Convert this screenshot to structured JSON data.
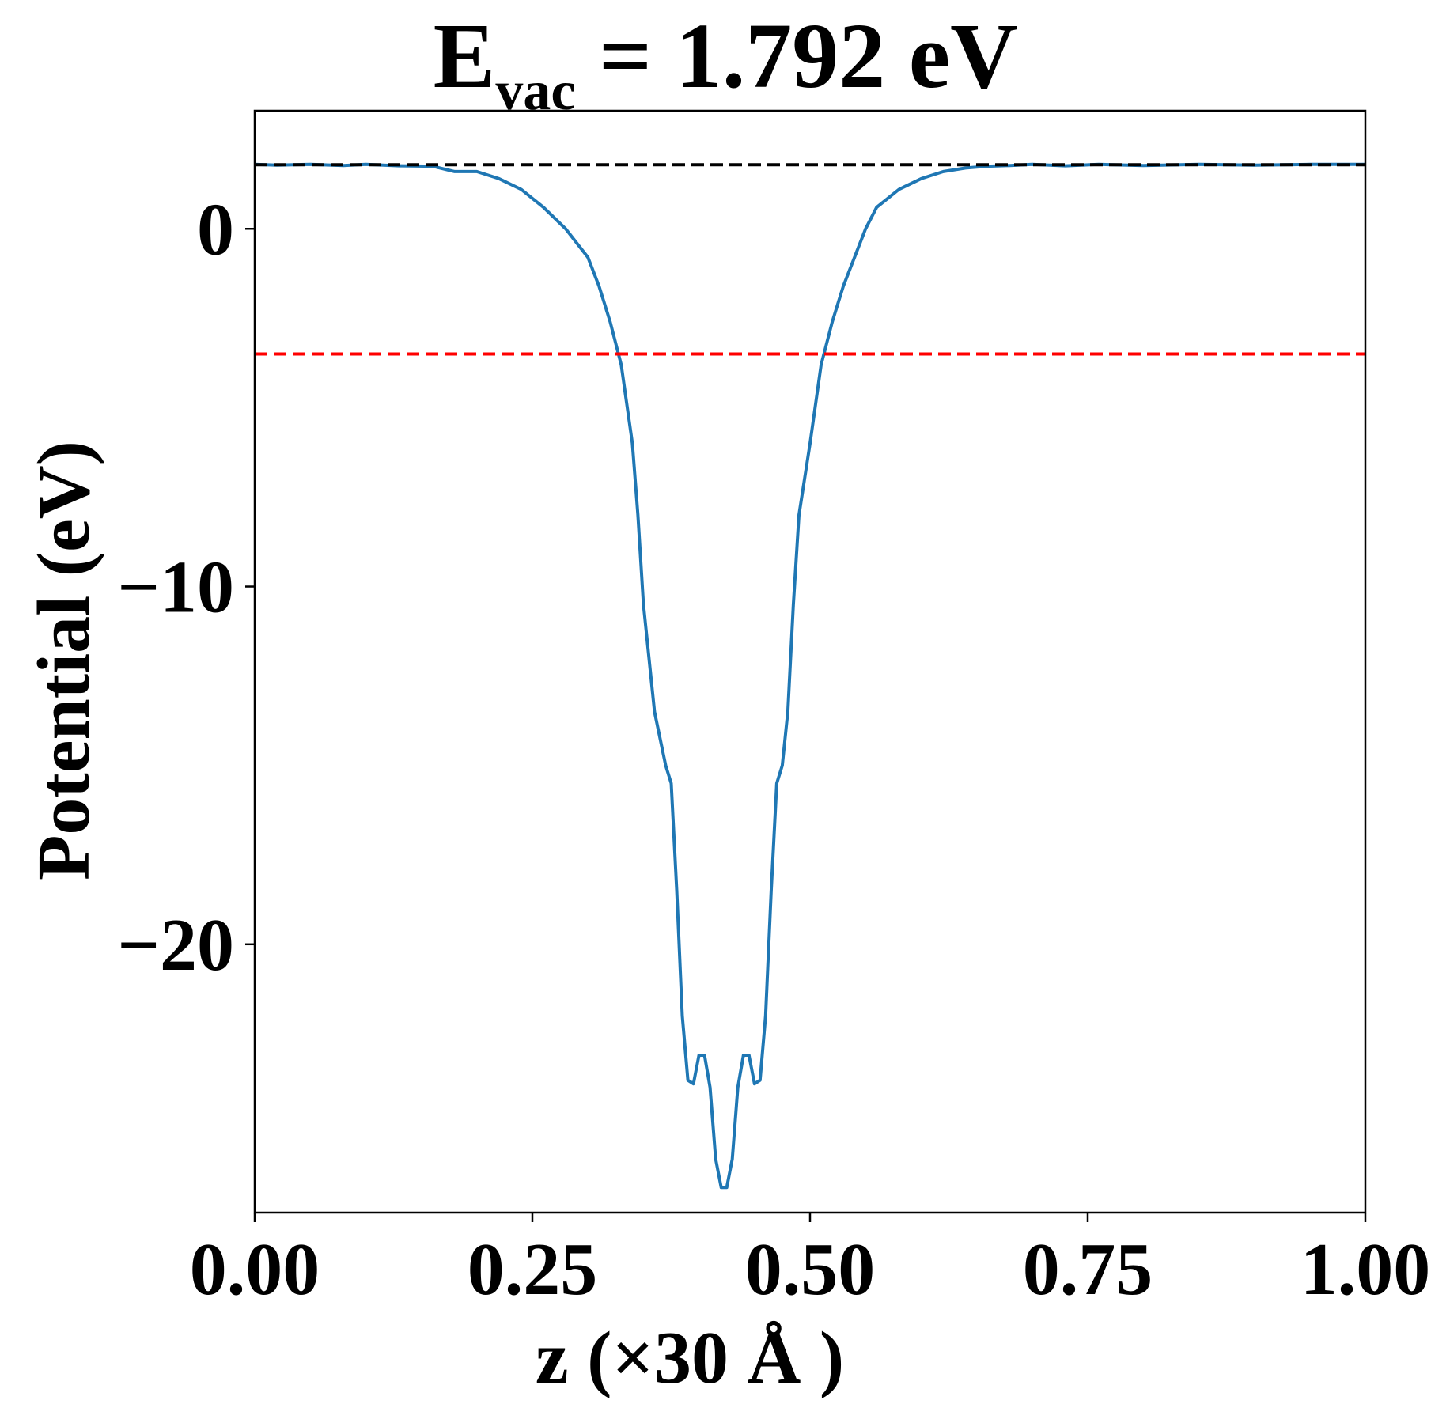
{
  "chart_data": {
    "type": "line",
    "title": {
      "main": "E",
      "subscript": "vac",
      "rest": " = 1.792 eV"
    },
    "xlabel": "z (×30 Å )",
    "ylabel": "Potential (eV)",
    "xlim": [
      0.0,
      1.0
    ],
    "ylim": [
      -27.5,
      3.3
    ],
    "xticks": [
      0.0,
      0.25,
      0.5,
      0.75,
      1.0
    ],
    "xtick_labels": [
      "0.00",
      "0.25",
      "0.50",
      "0.75",
      "1.00"
    ],
    "yticks": [
      0,
      -10,
      -20
    ],
    "ytick_labels": [
      "0",
      "−10",
      "−20"
    ],
    "grid": false,
    "legend": "none",
    "series": [
      {
        "color": "#1f77b4",
        "style": "solid",
        "x": [
          0.0,
          0.02,
          0.05,
          0.08,
          0.1,
          0.13,
          0.16,
          0.18,
          0.2,
          0.22,
          0.24,
          0.26,
          0.28,
          0.3,
          0.31,
          0.32,
          0.33,
          0.34,
          0.345,
          0.35,
          0.36,
          0.37,
          0.375,
          0.38,
          0.385,
          0.39,
          0.395,
          0.4,
          0.405,
          0.41,
          0.415,
          0.42,
          0.425,
          0.43,
          0.435,
          0.44,
          0.445,
          0.45,
          0.455,
          0.46,
          0.465,
          0.47,
          0.475,
          0.48,
          0.485,
          0.49,
          0.5,
          0.51,
          0.52,
          0.53,
          0.54,
          0.55,
          0.56,
          0.58,
          0.6,
          0.62,
          0.64,
          0.66,
          0.68,
          0.7,
          0.73,
          0.76,
          0.8,
          0.85,
          0.9,
          0.95,
          1.0
        ],
        "y": [
          1.8,
          1.78,
          1.8,
          1.77,
          1.8,
          1.76,
          1.75,
          1.6,
          1.6,
          1.4,
          1.1,
          0.6,
          0.0,
          -0.8,
          -1.6,
          -2.6,
          -3.8,
          -6.0,
          -8.0,
          -10.5,
          -13.5,
          -15.0,
          -15.5,
          -18.5,
          -22.0,
          -23.8,
          -23.9,
          -23.1,
          -23.1,
          -24.0,
          -26.0,
          -26.8,
          -26.8,
          -26.0,
          -24.0,
          -23.1,
          -23.1,
          -23.9,
          -23.8,
          -22.0,
          -18.5,
          -15.5,
          -15.0,
          -13.5,
          -10.5,
          -8.0,
          -6.0,
          -3.8,
          -2.6,
          -1.6,
          -0.8,
          0.0,
          0.6,
          1.1,
          1.4,
          1.6,
          1.7,
          1.75,
          1.77,
          1.8,
          1.76,
          1.8,
          1.77,
          1.8,
          1.78,
          1.8,
          1.8
        ]
      }
    ],
    "reference_lines": [
      {
        "y": 1.792,
        "color": "#000000",
        "style": "dashed"
      },
      {
        "y": -3.5,
        "color": "#ff0000",
        "style": "dashed"
      }
    ]
  }
}
